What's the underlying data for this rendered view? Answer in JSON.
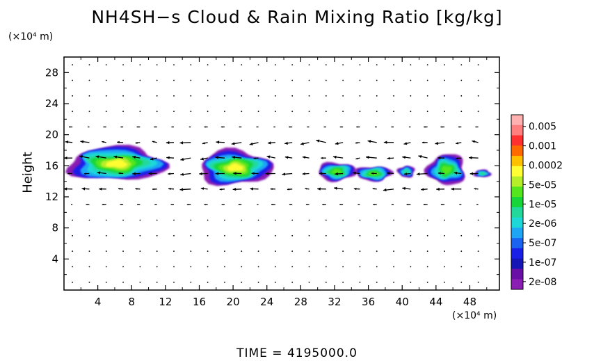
{
  "title": "NH4SH−s Cloud & Rain Mixing Ratio [kg/kg]",
  "y_unit": "(×10⁴ m)",
  "x_unit": "(×10⁴ m)",
  "time_label": "TIME  =  4195000.0",
  "chart_data": {
    "type": "heatmap",
    "title": "NH4SH−s Cloud & Rain Mixing Ratio [kg/kg]",
    "xlabel": "",
    "ylabel": "Height",
    "x_unit": "(×10⁴ m)",
    "y_unit": "(×10⁴ m)",
    "xlim": [
      0,
      51.5
    ],
    "ylim": [
      0,
      30
    ],
    "xticks": [
      4,
      8,
      12,
      16,
      20,
      24,
      28,
      32,
      36,
      40,
      44,
      48
    ],
    "yticks": [
      4,
      8,
      12,
      16,
      20,
      24,
      28
    ],
    "colorbar": {
      "labels": [
        "0.005",
        "0.001",
        "0.0002",
        "5e-05",
        "1e-05",
        "2e-06",
        "5e-07",
        "1e-07",
        "2e-08"
      ],
      "colors": [
        "#ffb0b0",
        "#ff7f7f",
        "#ff3030",
        "#ff6a00",
        "#ffc000",
        "#fffd33",
        "#b7ee2a",
        "#55e61e",
        "#16d63a",
        "#22d99b",
        "#1cd8d8",
        "#1ea6f5",
        "#1a63f0",
        "#1a1fe8",
        "#1515b5",
        "#6a0fa6",
        "#8a1db2"
      ]
    },
    "cloud_regions": [
      {
        "x_range": [
          0.5,
          12.0
        ],
        "y_range": [
          14.0,
          18.5
        ],
        "max_level": "5e-05"
      },
      {
        "x_range": [
          16.0,
          24.5
        ],
        "y_range": [
          13.5,
          18.0
        ],
        "max_level": "5e-05"
      },
      {
        "x_range": [
          30.0,
          34.5
        ],
        "y_range": [
          14.0,
          16.5
        ],
        "max_level": "1e-05"
      },
      {
        "x_range": [
          34.5,
          38.8
        ],
        "y_range": [
          14.0,
          16.0
        ],
        "max_level": "1e-05"
      },
      {
        "x_range": [
          39.5,
          41.5
        ],
        "y_range": [
          14.5,
          16.0
        ],
        "max_level": "2e-06"
      },
      {
        "x_range": [
          43.0,
          47.5
        ],
        "y_range": [
          13.5,
          17.5
        ],
        "max_level": "1e-05"
      },
      {
        "x_range": [
          48.5,
          50.5
        ],
        "y_range": [
          14.5,
          15.5
        ],
        "max_level": "2e-06"
      }
    ],
    "wind_vectors": "arrows shown at 2×10⁴ m grid spacing; strongest near heights 13–20"
  }
}
